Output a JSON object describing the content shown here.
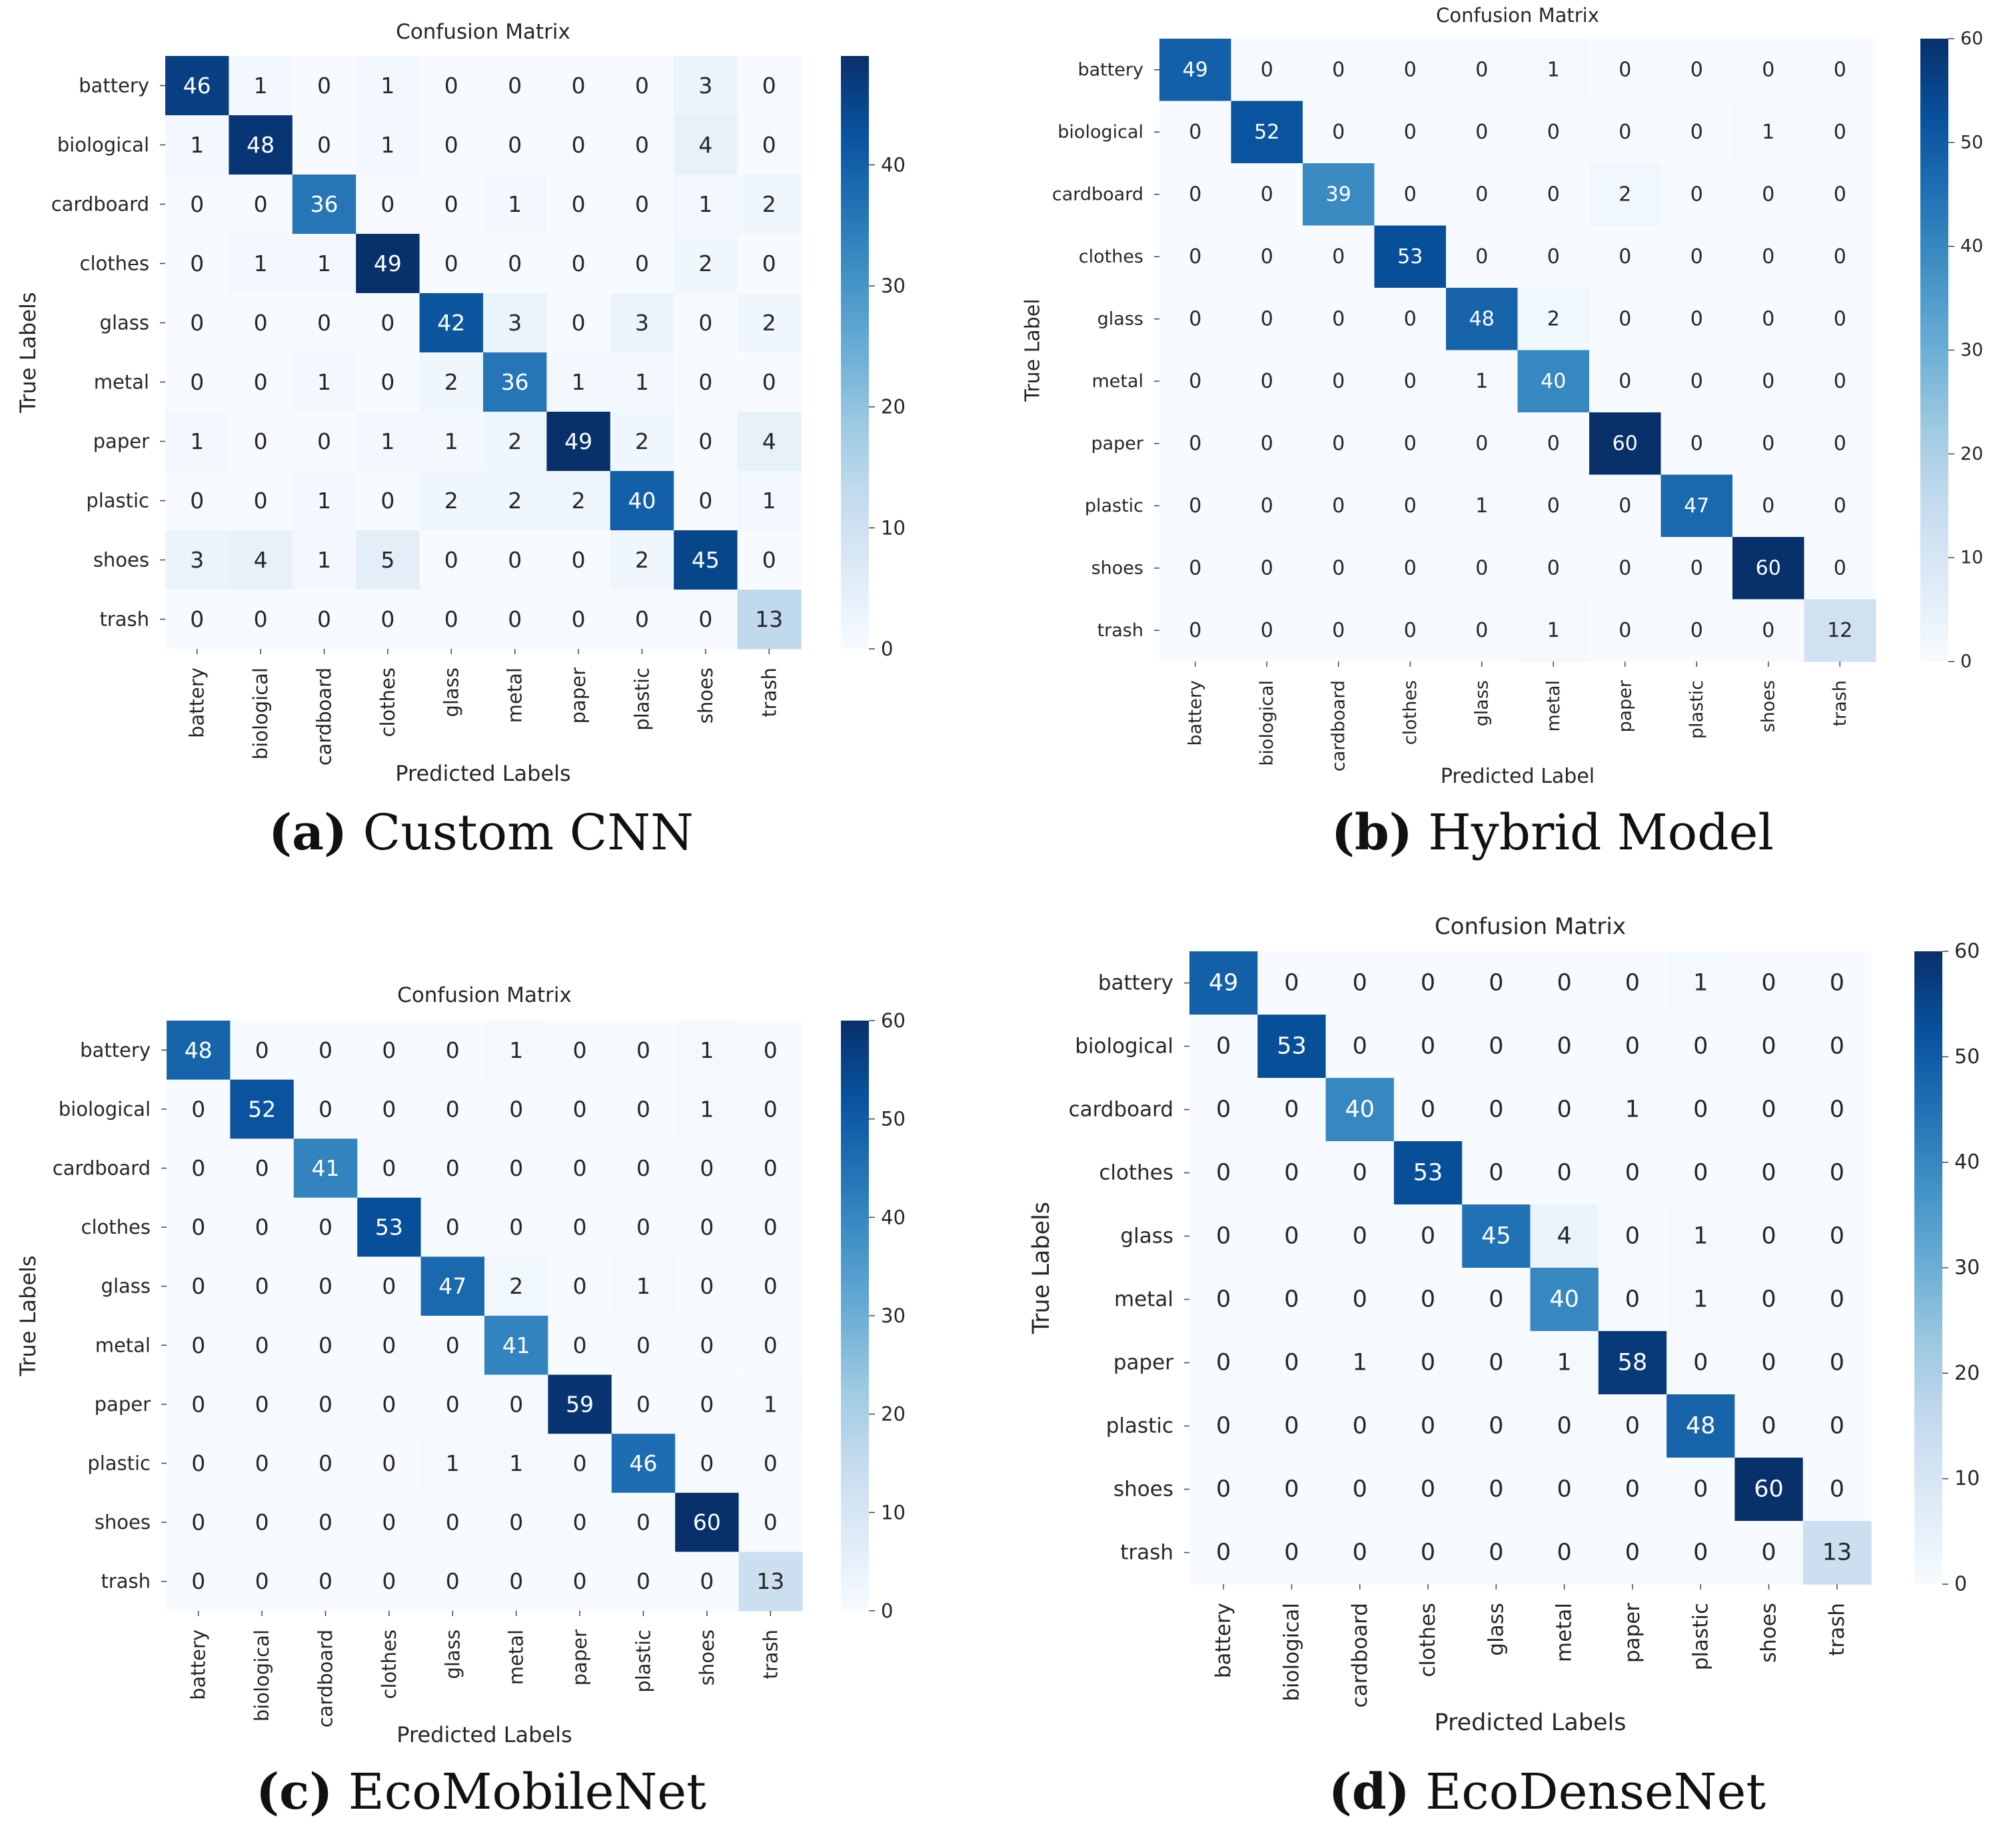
{
  "colors": {
    "low": "#f7fbff",
    "high": "#08306b",
    "dark_text": "#262626",
    "light_text": "#ffffff"
  },
  "chart_data": [
    {
      "type": "heatmap",
      "title": "Confusion Matrix",
      "xlabel": "Predicted Labels",
      "ylabel": "True Labels",
      "caption": {
        "letter": "(a)",
        "text": " Custom CNN"
      },
      "x_categories": [
        "battery",
        "biological",
        "cardboard",
        "clothes",
        "glass",
        "metal",
        "paper",
        "plastic",
        "shoes",
        "trash"
      ],
      "y_categories": [
        "battery",
        "biological",
        "cardboard",
        "clothes",
        "glass",
        "metal",
        "paper",
        "plastic",
        "shoes",
        "trash"
      ],
      "colorbar": {
        "min": 0,
        "max": 49,
        "ticks": [
          0,
          10,
          20,
          30,
          40
        ]
      },
      "values": [
        [
          46,
          1,
          0,
          1,
          0,
          0,
          0,
          0,
          3,
          0
        ],
        [
          1,
          48,
          0,
          1,
          0,
          0,
          0,
          0,
          4,
          0
        ],
        [
          0,
          0,
          36,
          0,
          0,
          1,
          0,
          0,
          1,
          2
        ],
        [
          0,
          1,
          1,
          49,
          0,
          0,
          0,
          0,
          2,
          0
        ],
        [
          0,
          0,
          0,
          0,
          42,
          3,
          0,
          3,
          0,
          2
        ],
        [
          0,
          0,
          1,
          0,
          2,
          36,
          1,
          1,
          0,
          0
        ],
        [
          1,
          0,
          0,
          1,
          1,
          2,
          49,
          2,
          0,
          4
        ],
        [
          0,
          0,
          1,
          0,
          2,
          2,
          2,
          40,
          0,
          1
        ],
        [
          3,
          4,
          1,
          5,
          0,
          0,
          0,
          2,
          45,
          0
        ],
        [
          0,
          0,
          0,
          0,
          0,
          0,
          0,
          0,
          0,
          13
        ]
      ]
    },
    {
      "type": "heatmap",
      "title": "Confusion Matrix",
      "xlabel": "Predicted Label",
      "ylabel": "True Label",
      "caption": {
        "letter": "(b)",
        "text": " Hybrid Model"
      },
      "x_categories": [
        "battery",
        "biological",
        "cardboard",
        "clothes",
        "glass",
        "metal",
        "paper",
        "plastic",
        "shoes",
        "trash"
      ],
      "y_categories": [
        "battery",
        "biological",
        "cardboard",
        "clothes",
        "glass",
        "metal",
        "paper",
        "plastic",
        "shoes",
        "trash"
      ],
      "colorbar": {
        "min": 0,
        "max": 60,
        "ticks": [
          0,
          10,
          20,
          30,
          40,
          50,
          60
        ]
      },
      "values": [
        [
          49,
          0,
          0,
          0,
          0,
          1,
          0,
          0,
          0,
          0
        ],
        [
          0,
          52,
          0,
          0,
          0,
          0,
          0,
          0,
          1,
          0
        ],
        [
          0,
          0,
          39,
          0,
          0,
          0,
          2,
          0,
          0,
          0
        ],
        [
          0,
          0,
          0,
          53,
          0,
          0,
          0,
          0,
          0,
          0
        ],
        [
          0,
          0,
          0,
          0,
          48,
          2,
          0,
          0,
          0,
          0
        ],
        [
          0,
          0,
          0,
          0,
          1,
          40,
          0,
          0,
          0,
          0
        ],
        [
          0,
          0,
          0,
          0,
          0,
          0,
          60,
          0,
          0,
          0
        ],
        [
          0,
          0,
          0,
          0,
          1,
          0,
          0,
          47,
          0,
          0
        ],
        [
          0,
          0,
          0,
          0,
          0,
          0,
          0,
          0,
          60,
          0
        ],
        [
          0,
          0,
          0,
          0,
          0,
          1,
          0,
          0,
          0,
          12
        ]
      ]
    },
    {
      "type": "heatmap",
      "title": "Confusion Matrix",
      "xlabel": "Predicted Labels",
      "ylabel": "True Labels",
      "caption": {
        "letter": "(c)",
        "text": " EcoMobileNet"
      },
      "x_categories": [
        "battery",
        "biological",
        "cardboard",
        "clothes",
        "glass",
        "metal",
        "paper",
        "plastic",
        "shoes",
        "trash"
      ],
      "y_categories": [
        "battery",
        "biological",
        "cardboard",
        "clothes",
        "glass",
        "metal",
        "paper",
        "plastic",
        "shoes",
        "trash"
      ],
      "colorbar": {
        "min": 0,
        "max": 60,
        "ticks": [
          0,
          10,
          20,
          30,
          40,
          50,
          60
        ]
      },
      "values": [
        [
          48,
          0,
          0,
          0,
          0,
          1,
          0,
          0,
          1,
          0
        ],
        [
          0,
          52,
          0,
          0,
          0,
          0,
          0,
          0,
          1,
          0
        ],
        [
          0,
          0,
          41,
          0,
          0,
          0,
          0,
          0,
          0,
          0
        ],
        [
          0,
          0,
          0,
          53,
          0,
          0,
          0,
          0,
          0,
          0
        ],
        [
          0,
          0,
          0,
          0,
          47,
          2,
          0,
          1,
          0,
          0
        ],
        [
          0,
          0,
          0,
          0,
          0,
          41,
          0,
          0,
          0,
          0
        ],
        [
          0,
          0,
          0,
          0,
          0,
          0,
          59,
          0,
          0,
          1
        ],
        [
          0,
          0,
          0,
          0,
          1,
          1,
          0,
          46,
          0,
          0
        ],
        [
          0,
          0,
          0,
          0,
          0,
          0,
          0,
          0,
          60,
          0
        ],
        [
          0,
          0,
          0,
          0,
          0,
          0,
          0,
          0,
          0,
          13
        ]
      ]
    },
    {
      "type": "heatmap",
      "title": "Confusion Matrix",
      "xlabel": "Predicted Labels",
      "ylabel": "True Labels",
      "caption": {
        "letter": "(d)",
        "text": " EcoDenseNet"
      },
      "x_categories": [
        "battery",
        "biological",
        "cardboard",
        "clothes",
        "glass",
        "metal",
        "paper",
        "plastic",
        "shoes",
        "trash"
      ],
      "y_categories": [
        "battery",
        "biological",
        "cardboard",
        "clothes",
        "glass",
        "metal",
        "paper",
        "plastic",
        "shoes",
        "trash"
      ],
      "colorbar": {
        "min": 0,
        "max": 60,
        "ticks": [
          0,
          10,
          20,
          30,
          40,
          50,
          60
        ]
      },
      "values": [
        [
          49,
          0,
          0,
          0,
          0,
          0,
          0,
          1,
          0,
          0
        ],
        [
          0,
          53,
          0,
          0,
          0,
          0,
          0,
          0,
          0,
          0
        ],
        [
          0,
          0,
          40,
          0,
          0,
          0,
          1,
          0,
          0,
          0
        ],
        [
          0,
          0,
          0,
          53,
          0,
          0,
          0,
          0,
          0,
          0
        ],
        [
          0,
          0,
          0,
          0,
          45,
          4,
          0,
          1,
          0,
          0
        ],
        [
          0,
          0,
          0,
          0,
          0,
          40,
          0,
          1,
          0,
          0
        ],
        [
          0,
          0,
          1,
          0,
          0,
          1,
          58,
          0,
          0,
          0
        ],
        [
          0,
          0,
          0,
          0,
          0,
          0,
          0,
          48,
          0,
          0
        ],
        [
          0,
          0,
          0,
          0,
          0,
          0,
          0,
          0,
          60,
          0
        ],
        [
          0,
          0,
          0,
          0,
          0,
          0,
          0,
          0,
          0,
          13
        ]
      ]
    }
  ]
}
